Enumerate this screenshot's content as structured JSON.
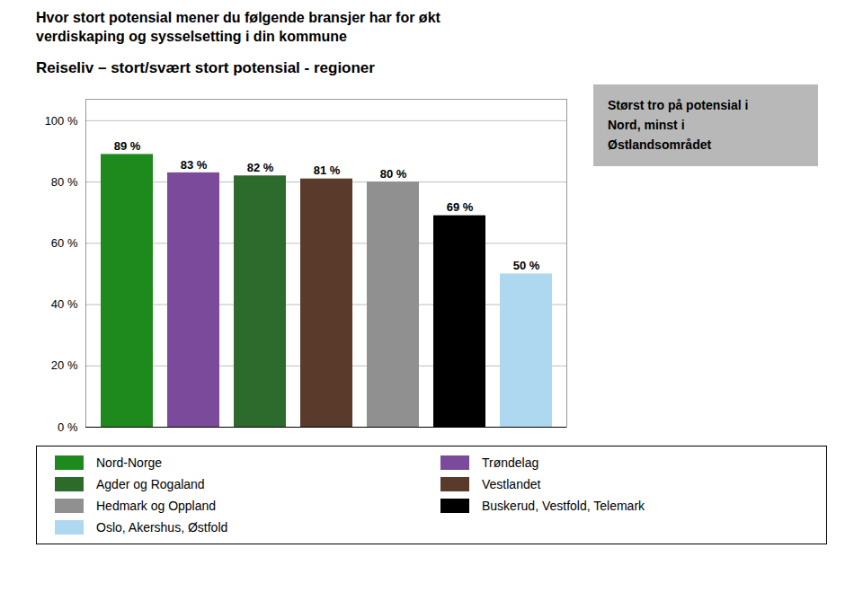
{
  "chart_data": {
    "type": "bar",
    "title": "Hvor stort potensial mener du følgende bransjer har for økt\nverdiskaping og sysselsetting i din kommune",
    "subtitle": "Reiseliv – stort/svært stort potensial - regioner",
    "annotation": "Størst tro på potensial i\nNord, minst i\nØstlandsområdet",
    "categories": [
      "Nord-Norge",
      "Trøndelag",
      "Agder og Rogaland",
      "Vestlandet",
      "Hedmark og Oppland",
      "Buskerud, Vestfold, Telemark",
      "Oslo, Akershus, Østfold"
    ],
    "values": [
      89,
      83,
      82,
      81,
      80,
      69,
      50
    ],
    "value_labels": [
      "89 %",
      "83 %",
      "82 %",
      "81 %",
      "80 %",
      "69 %",
      "50 %"
    ],
    "colors": [
      "#1e8a1e",
      "#7b4a9a",
      "#2d6b2d",
      "#5a3a2a",
      "#909090",
      "#000000",
      "#add8f0"
    ],
    "ylim": [
      0,
      107
    ],
    "yticks": [
      {
        "value": 0,
        "label": "0 %"
      },
      {
        "value": 20,
        "label": "20 %"
      },
      {
        "value": 40,
        "label": "40 %"
      },
      {
        "value": 60,
        "label": "60 %"
      },
      {
        "value": 80,
        "label": "80 %"
      },
      {
        "value": 100,
        "label": "100 %"
      }
    ],
    "grid": true,
    "data_labels": true,
    "tick_labels": "y",
    "legend": "bottom"
  }
}
